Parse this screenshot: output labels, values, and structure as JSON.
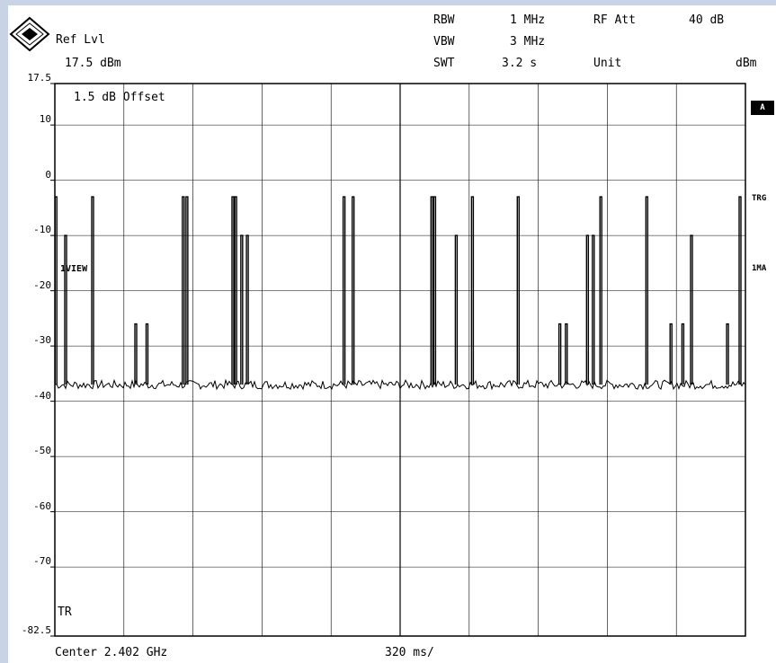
{
  "header": {
    "ref_lvl_label": "Ref Lvl",
    "ref_lvl_value": "17.5 dBm",
    "rbw_label": "RBW",
    "rbw_value": "1 MHz",
    "vbw_label": "VBW",
    "vbw_value": "3 MHz",
    "swt_label": "SWT",
    "swt_value": "3.2 s",
    "rfatt_label": "RF Att",
    "rfatt_value": "40 dB",
    "unit_label": "Unit",
    "unit_value": "dBm"
  },
  "annotations": {
    "offset": "1.5 dB Offset",
    "vview": "1VIEW",
    "tr": "TR",
    "side_a": "A",
    "side_trg": "TRG",
    "side_1ma": "1MA"
  },
  "footer": {
    "center": "Center 2.402 GHz",
    "span": "320 ms/"
  },
  "colors": {
    "trace": "#000000",
    "grid": "#000000",
    "frame": "#c8d4e6"
  },
  "chart_data": {
    "type": "line",
    "title": "",
    "xlabel": "Center 2.402 GHz",
    "ylabel": "",
    "xlim": [
      0,
      3200
    ],
    "ylim": [
      -82.5,
      17.5
    ],
    "y_ticks": [
      17.5,
      10,
      0,
      -10,
      -20,
      -30,
      -40,
      -50,
      -60,
      -70,
      -82.5
    ],
    "y_tick_labels": [
      "17.5",
      "10",
      "0",
      "-10",
      "-20",
      "-30",
      "-40",
      "-50",
      "-60",
      "-70",
      "-82.5"
    ],
    "grid": true,
    "noise_floor_dbm": -37,
    "series": [
      {
        "peaks": [
          {
            "t": 5,
            "level": -3
          },
          {
            "t": 50,
            "level": -10
          },
          {
            "t": 175,
            "level": -3
          },
          {
            "t": 375,
            "level": -26
          },
          {
            "t": 427,
            "level": -26
          },
          {
            "t": 595,
            "level": -3
          },
          {
            "t": 612,
            "level": -3
          },
          {
            "t": 825,
            "level": -3
          },
          {
            "t": 838,
            "level": -3
          },
          {
            "t": 866,
            "level": -10
          },
          {
            "t": 892,
            "level": -10
          },
          {
            "t": 1340,
            "level": -3
          },
          {
            "t": 1382,
            "level": -3
          },
          {
            "t": 1747,
            "level": -3
          },
          {
            "t": 1760,
            "level": -3
          },
          {
            "t": 1860,
            "level": -10
          },
          {
            "t": 1935,
            "level": -3
          },
          {
            "t": 2147,
            "level": -3
          },
          {
            "t": 2340,
            "level": -26
          },
          {
            "t": 2370,
            "level": -26
          },
          {
            "t": 2468,
            "level": -10
          },
          {
            "t": 2495,
            "level": -10
          },
          {
            "t": 2530,
            "level": -3
          },
          {
            "t": 2743,
            "level": -3
          },
          {
            "t": 2855,
            "level": -26
          },
          {
            "t": 2910,
            "level": -26
          },
          {
            "t": 2950,
            "level": -10
          },
          {
            "t": 3117,
            "level": -26
          },
          {
            "t": 3175,
            "level": -3
          }
        ]
      }
    ]
  }
}
